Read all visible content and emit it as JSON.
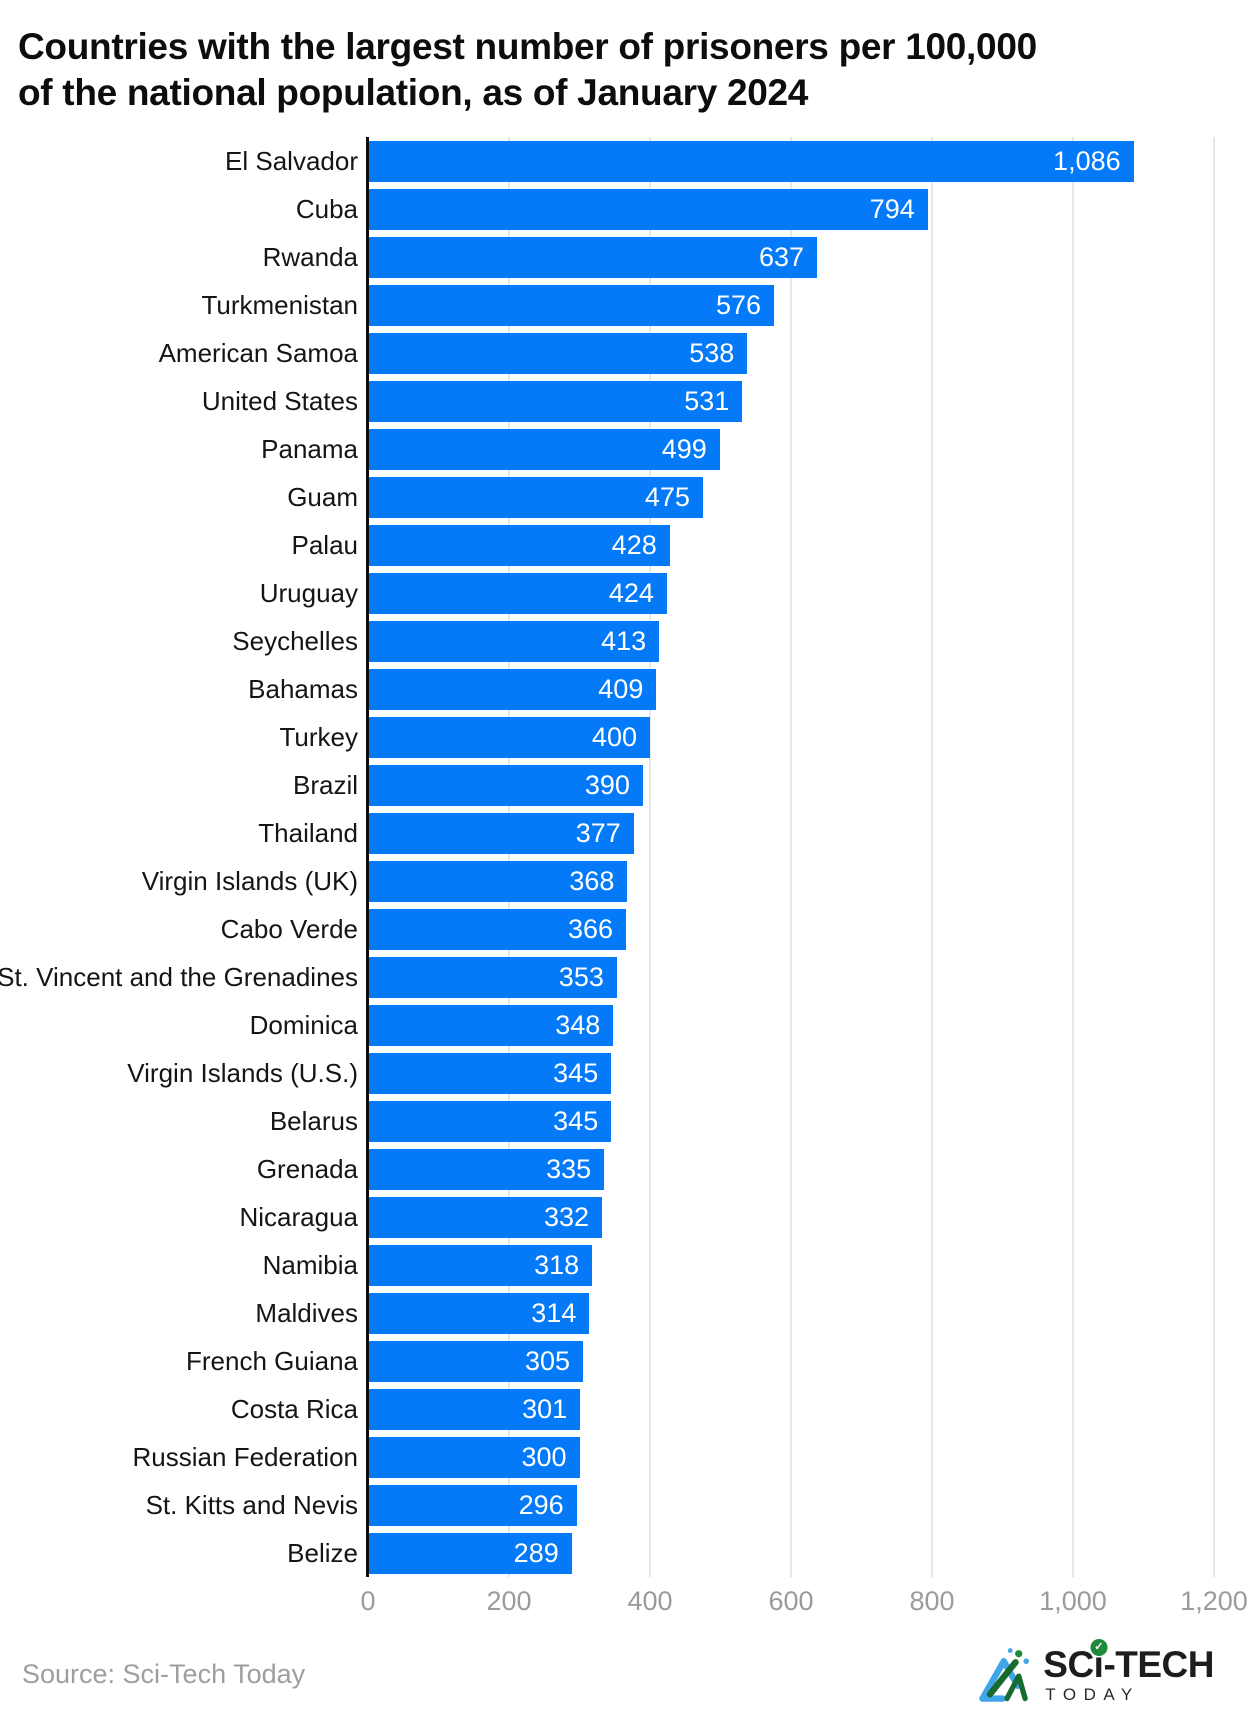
{
  "title": {
    "line1": "Countries with the largest number of prisoners per 100,000",
    "line2": "of the national population, as of January 2024"
  },
  "chart_data": {
    "type": "bar",
    "orientation": "horizontal",
    "title": "Countries with the largest number of prisoners per 100,000 of the national population, as of January 2024",
    "categories": [
      "El Salvador",
      "Cuba",
      "Rwanda",
      "Turkmenistan",
      "American Samoa",
      "United States",
      "Panama",
      "Guam",
      "Palau",
      "Uruguay",
      "Seychelles",
      "Bahamas",
      "Turkey",
      "Brazil",
      "Thailand",
      "Virgin Islands (UK)",
      "Cabo Verde",
      "St. Vincent and the Grenadines",
      "Dominica",
      "Virgin Islands (U.S.)",
      "Belarus",
      "Grenada",
      "Nicaragua",
      "Namibia",
      "Maldives",
      "French Guiana",
      "Costa Rica",
      "Russian Federation",
      "St. Kitts and Nevis",
      "Belize"
    ],
    "values": [
      1086,
      794,
      637,
      576,
      538,
      531,
      499,
      475,
      428,
      424,
      413,
      409,
      400,
      390,
      377,
      368,
      366,
      353,
      348,
      345,
      345,
      335,
      332,
      318,
      314,
      305,
      301,
      300,
      296,
      289
    ],
    "value_labels": [
      "1,086",
      "794",
      "637",
      "576",
      "538",
      "531",
      "499",
      "475",
      "428",
      "424",
      "413",
      "409",
      "400",
      "390",
      "377",
      "368",
      "366",
      "353",
      "348",
      "345",
      "345",
      "335",
      "332",
      "318",
      "314",
      "305",
      "301",
      "300",
      "296",
      "289"
    ],
    "xlabel": "",
    "ylabel": "",
    "xlim": [
      0,
      1200
    ],
    "xticks": [
      0,
      200,
      400,
      600,
      800,
      1000,
      1200
    ],
    "xtick_labels": [
      "0",
      "200",
      "400",
      "600",
      "800",
      "1,000",
      "1,200"
    ],
    "grid": "vertical",
    "legend": "none",
    "bar_color": "#047af8",
    "value_label_color": "#ffffff",
    "grid_color": "#e7e7e7",
    "axis_color": "#0d0d0d",
    "tick_label_color": "#9b9b9b",
    "category_label_color": "#151515"
  },
  "footer": {
    "source": "Source: Sci-Tech Today",
    "logo": {
      "part1": "SC",
      "i_letter": "i",
      "part2": "-TECH",
      "sub": "TODAY",
      "check": "✓"
    }
  }
}
